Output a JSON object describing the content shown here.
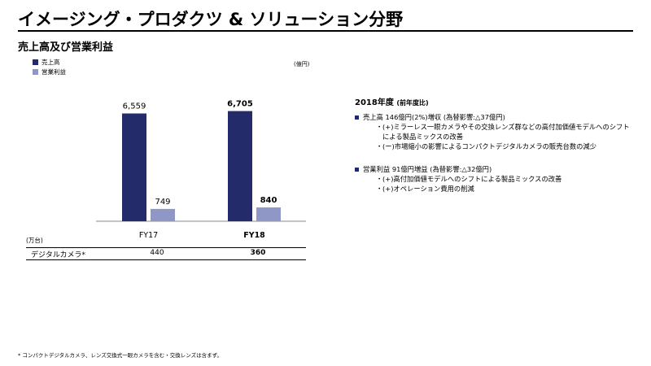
{
  "page": {
    "title": "イメージング・プロダクツ & ソリューション分野",
    "subtitle": "売上高及び営業利益",
    "footnote": "* コンパクトデジタルカメラ、レンズ交換式一眼カメラを含む・交換レンズは含まず。"
  },
  "legend": {
    "sales": "売上高",
    "op_income": "営業利益"
  },
  "unit": "(億円)",
  "colors": {
    "sales": "#232b6b",
    "op_income": "#8e97c5",
    "bullet": "#1f2a6e"
  },
  "chart_data": {
    "type": "bar",
    "categories": [
      "FY17",
      "FY18"
    ],
    "series": [
      {
        "name": "売上高",
        "values": [
          6559,
          6705
        ]
      },
      {
        "name": "営業利益",
        "values": [
          749,
          840
        ]
      }
    ],
    "value_labels": [
      [
        "6,559",
        "6,705"
      ],
      [
        "749",
        "840"
      ]
    ],
    "bold_category_index": 1,
    "ylabel": "(億円)",
    "grid": false,
    "legend_position": "top-left"
  },
  "table": {
    "unit": "(万台)",
    "row_label": "デジタルカメラ*",
    "values": [
      "440",
      "360"
    ]
  },
  "commentary": {
    "heading": "2018年度",
    "heading_sub": "(前年度比)",
    "block1": {
      "headline": "売上高 146億円(2%)増収 (為替影響:△37億円)",
      "items": [
        "(+)ミラーレス一眼カメラやその交換レンズ群などの高付加価値モデルへのシフトによる製品ミックスの改善",
        "(ー)市場縮小の影響によるコンパクトデジタルカメラの販売台数の減少"
      ]
    },
    "block2": {
      "headline": "営業利益 91億円増益 (為替影響:△32億円)",
      "items": [
        "(+)高付加価値モデルへのシフトによる製品ミックスの改善",
        "(+)オペレーション費用の削減"
      ]
    }
  }
}
